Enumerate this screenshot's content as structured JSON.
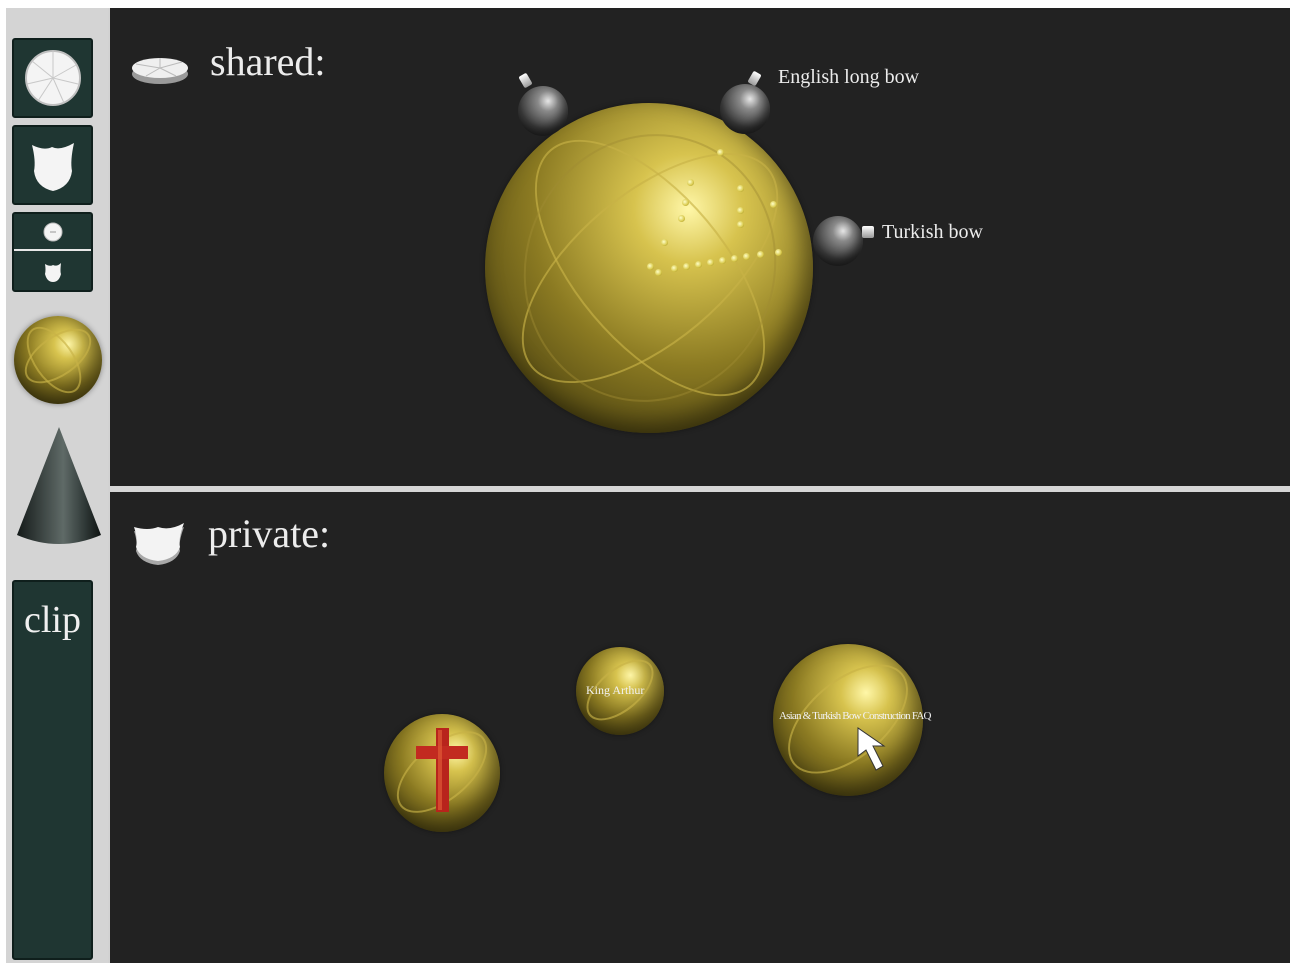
{
  "shared_panel": {
    "title": "shared:",
    "satellites": [
      {
        "label": "English long bow"
      },
      {
        "label": "Turkish bow"
      }
    ]
  },
  "private_panel": {
    "title": "private:",
    "spheres": [
      {
        "label": "King Arthur"
      },
      {
        "label": "Asian & Turkish Bow Construction FAQ"
      }
    ]
  },
  "toolbar": {
    "clip_label": "clip"
  },
  "colors": {
    "pane_background": "#222222",
    "tool_tile": "#1f3632",
    "sphere_gold": "#b8a43c",
    "separator": "#d6d6d6"
  },
  "icons": [
    "pie-disk-icon",
    "shield-icon",
    "split-view-icon",
    "sphere-tool-icon",
    "cone-tool-icon",
    "cursor-arrow-icon",
    "cross-icon"
  ]
}
